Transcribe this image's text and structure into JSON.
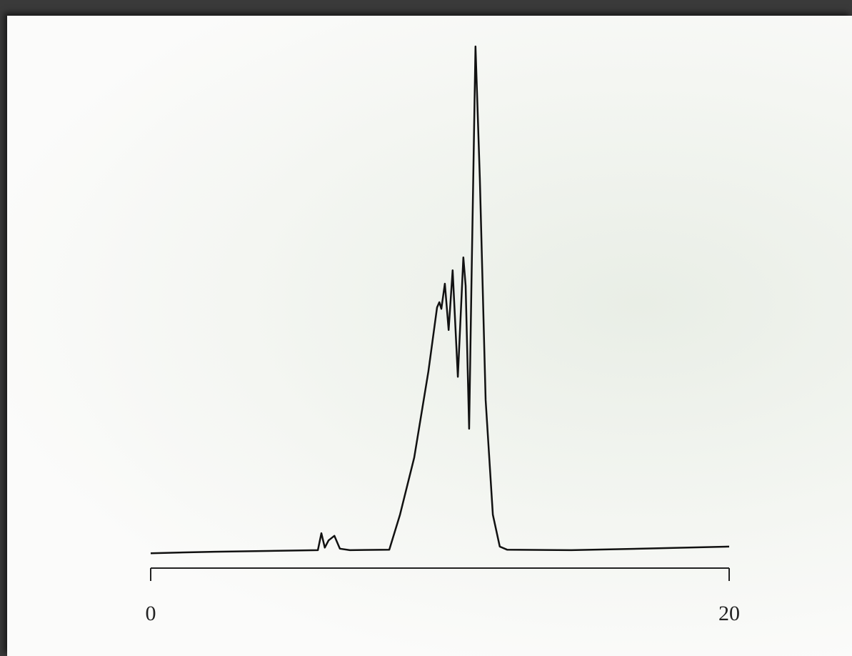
{
  "chart_data": {
    "type": "line",
    "x": [
      0,
      2.2,
      5.78,
      5.9,
      6.02,
      6.15,
      6.35,
      6.54,
      6.89,
      8.25,
      8.62,
      9.11,
      9.6,
      9.9,
      9.98,
      10.05,
      10.17,
      10.3,
      10.44,
      10.62,
      10.81,
      10.89,
      11.01,
      11.09,
      11.23,
      11.38,
      11.58,
      11.83,
      12.07,
      12.32,
      14.54,
      17.01,
      20
    ],
    "values": [
      0.8,
      1.1,
      1.4,
      4.7,
      1.9,
      3.3,
      4.2,
      1.7,
      1.4,
      1.5,
      8.3,
      19.4,
      36.1,
      48.6,
      49.6,
      48.3,
      53.2,
      44.2,
      55.8,
      35.1,
      58.3,
      52.8,
      25.0,
      52.8,
      99.3,
      73.6,
      30.6,
      8.3,
      2.1,
      1.5,
      1.4,
      1.7,
      2.1
    ],
    "color": "#111111",
    "xlim": [
      0,
      20
    ],
    "xticks": [
      0,
      20
    ],
    "ylim": [
      0,
      100
    ]
  }
}
